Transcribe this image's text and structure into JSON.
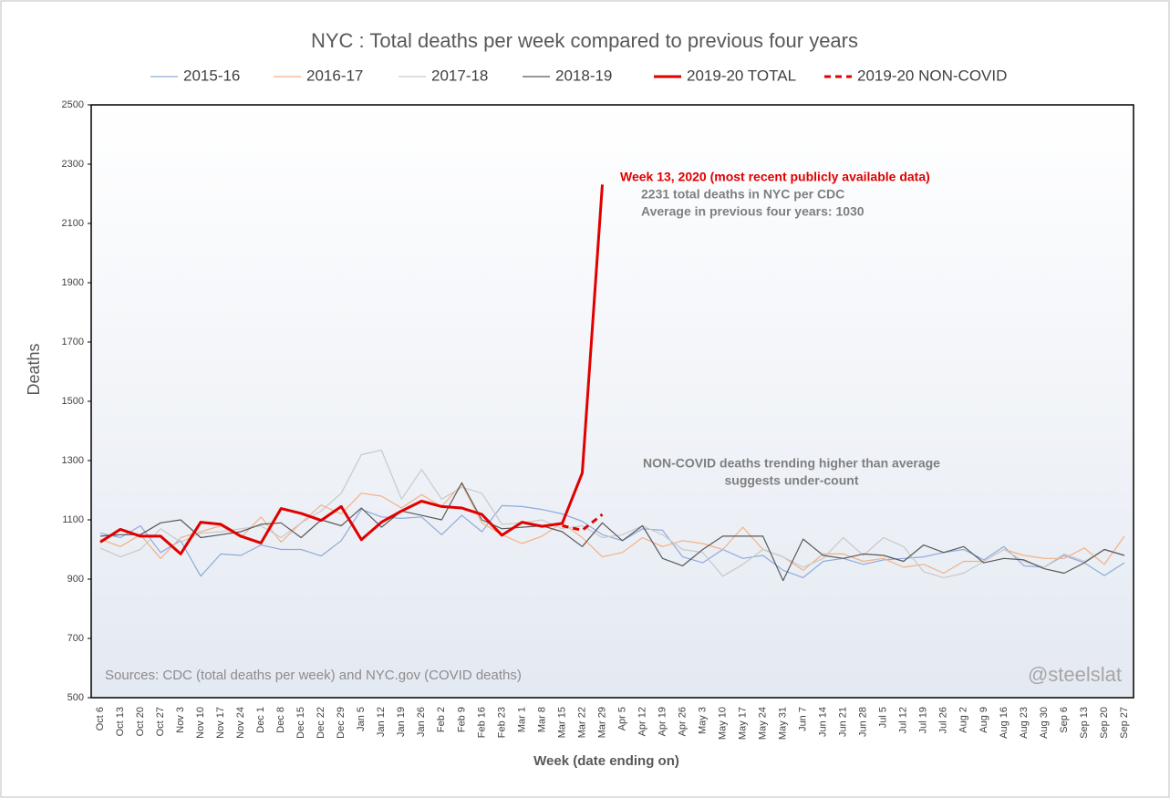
{
  "chart_data": {
    "type": "line",
    "title": "NYC : Total deaths per week compared to previous four years",
    "x_label": "Week (date ending on)",
    "y_label": "Deaths",
    "categories": [
      "Oct 6",
      "Oct 13",
      "Oct 20",
      "Oct 27",
      "Nov 3",
      "Nov 10",
      "Nov 17",
      "Nov 24",
      "Dec 1",
      "Dec 8",
      "Dec 15",
      "Dec 22",
      "Dec 29",
      "Jan 5",
      "Jan 12",
      "Jan 19",
      "Jan 26",
      "Feb 2",
      "Feb 9",
      "Feb 16",
      "Feb 23",
      "Mar 1",
      "Mar 8",
      "Mar 15",
      "Mar 22",
      "Mar 29",
      "Apr 5",
      "Apr 12",
      "Apr 19",
      "Apr 26",
      "May 3",
      "May 10",
      "May 17",
      "May 24",
      "May 31",
      "Jun 7",
      "Jun 14",
      "Jun 21",
      "Jun 28",
      "Jul 5",
      "Jul 12",
      "Jul 19",
      "Jul 26",
      "Aug 2",
      "Aug 9",
      "Aug 16",
      "Aug 23",
      "Aug 30",
      "Sep 6",
      "Sep 13",
      "Sep 20",
      "Sep 27"
    ],
    "series": [
      {
        "name": "2015-16",
        "color": "#8faadc",
        "values": [
          1055,
          1040,
          1080,
          990,
          1030,
          910,
          985,
          980,
          1015,
          1000,
          1000,
          978,
          1030,
          1135,
          1110,
          1105,
          1110,
          1050,
          1115,
          1060,
          1148,
          1145,
          1135,
          1120,
          1095,
          1050,
          1030,
          1070,
          1065,
          975,
          955,
          1000,
          970,
          980,
          930,
          905,
          960,
          970,
          950,
          965,
          970,
          975,
          990,
          1000,
          965,
          1010,
          945,
          940,
          980,
          955,
          912,
          955
        ]
      },
      {
        "name": "2016-17",
        "color": "#f4b183",
        "values": [
          1035,
          1010,
          1050,
          970,
          1040,
          1060,
          1080,
          1040,
          1110,
          1025,
          1090,
          1150,
          1120,
          1190,
          1180,
          1140,
          1185,
          1145,
          1220,
          1090,
          1050,
          1020,
          1045,
          1090,
          1040,
          975,
          990,
          1040,
          1010,
          1030,
          1020,
          1000,
          1075,
          1000,
          975,
          930,
          985,
          985,
          960,
          970,
          940,
          950,
          920,
          960,
          960,
          1000,
          980,
          970,
          970,
          1005,
          950,
          1045
        ]
      },
      {
        "name": "2017-18",
        "color": "#c9c9c9",
        "values": [
          1005,
          975,
          1000,
          1070,
          1025,
          1055,
          1060,
          1070,
          1080,
          1040,
          1090,
          1130,
          1190,
          1320,
          1335,
          1170,
          1270,
          1170,
          1210,
          1190,
          1085,
          1090,
          1100,
          1070,
          1080,
          1040,
          1050,
          1080,
          1050,
          1000,
          990,
          910,
          950,
          1000,
          975,
          940,
          970,
          1040,
          980,
          1040,
          1010,
          925,
          905,
          920,
          960,
          1000,
          960,
          940,
          985,
          960,
          1000,
          980
        ]
      },
      {
        "name": "2018-19",
        "color": "#595959",
        "values": [
          1045,
          1050,
          1050,
          1090,
          1100,
          1040,
          1050,
          1060,
          1085,
          1090,
          1040,
          1100,
          1080,
          1140,
          1075,
          1130,
          1115,
          1100,
          1225,
          1100,
          1070,
          1075,
          1080,
          1060,
          1010,
          1090,
          1030,
          1080,
          970,
          945,
          1000,
          1045,
          1045,
          1045,
          895,
          1035,
          980,
          970,
          985,
          980,
          960,
          1015,
          990,
          1010,
          955,
          970,
          965,
          935,
          920,
          955,
          1000,
          980
        ]
      },
      {
        "name": "2019-20 TOTAL",
        "color": "#e00000",
        "values": [
          1025,
          1068,
          1045,
          1045,
          985,
          1092,
          1085,
          1045,
          1022,
          1138,
          1122,
          1098,
          1145,
          1033,
          1092,
          1130,
          1163,
          1145,
          1140,
          1118,
          1048,
          1092,
          1078,
          1088,
          1258,
          2231,
          null,
          null,
          null,
          null,
          null,
          null,
          null,
          null,
          null,
          null,
          null,
          null,
          null,
          null,
          null,
          null,
          null,
          null,
          null,
          null,
          null,
          null,
          null,
          null,
          null,
          null
        ]
      },
      {
        "name": "2019-20 NON-COVID",
        "color": "#e00000",
        "dashed": true,
        "values": [
          null,
          null,
          null,
          null,
          null,
          null,
          null,
          null,
          null,
          null,
          null,
          null,
          null,
          null,
          null,
          null,
          null,
          null,
          null,
          null,
          null,
          null,
          null,
          1080,
          1065,
          1118,
          null,
          null,
          null,
          null,
          null,
          null,
          null,
          null,
          null,
          null,
          null,
          null,
          null,
          null,
          null,
          null,
          null,
          null,
          null,
          null,
          null,
          null,
          null,
          null,
          null,
          null
        ]
      }
    ],
    "ylim": [
      500,
      2500
    ],
    "yticks": [
      500,
      700,
      900,
      1100,
      1300,
      1500,
      1700,
      1900,
      2100,
      2300,
      2500
    ],
    "grid": false,
    "annotations": [
      "Week 13, 2020 (most recent publicly available data)",
      "2231 total deaths in NYC per CDC",
      "Average in previous four years: 1030",
      "NON-COVID deaths trending higher than average",
      "suggests under-count",
      "Sources: CDC (total deaths per week) and NYC.gov (COVID deaths)",
      "@steelslat"
    ]
  }
}
